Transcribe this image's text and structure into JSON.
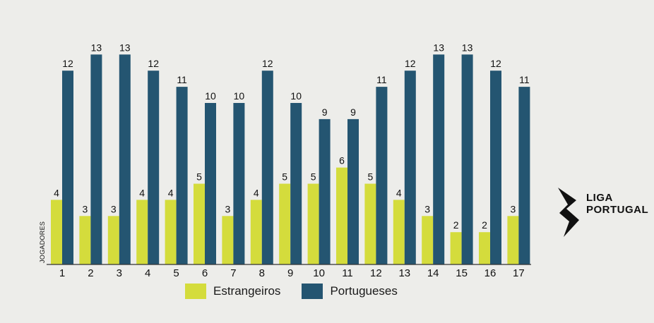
{
  "colors": {
    "background": "#ededea",
    "estrangeiros": "#d4dc3c",
    "portugueses": "#245571",
    "text": "#111111"
  },
  "chart_data": {
    "type": "bar",
    "categories": [
      "1",
      "2",
      "3",
      "4",
      "5",
      "6",
      "7",
      "8",
      "9",
      "10",
      "11",
      "12",
      "13",
      "14",
      "15",
      "16",
      "17"
    ],
    "series": [
      {
        "name": "Estrangeiros",
        "color": "#d4dc3c",
        "values": [
          4,
          3,
          3,
          4,
          4,
          5,
          3,
          4,
          5,
          5,
          6,
          5,
          4,
          3,
          2,
          2,
          3
        ]
      },
      {
        "name": "Portugueses",
        "color": "#245571",
        "values": [
          12,
          13,
          13,
          12,
          11,
          10,
          10,
          12,
          10,
          9,
          9,
          11,
          12,
          13,
          13,
          12,
          11
        ]
      }
    ],
    "title": "",
    "xlabel": "",
    "ylabel": "JOGADORES",
    "ylim": [
      0,
      13
    ],
    "grid": false,
    "data_labels": true,
    "legend_position": "bottom"
  },
  "legend": {
    "items": [
      {
        "label": "Estrangeiros",
        "color": "#d4dc3c"
      },
      {
        "label": "Portugueses",
        "color": "#245571"
      }
    ]
  },
  "logo": {
    "line1": "LIGA",
    "line2": "PORTUGAL"
  }
}
